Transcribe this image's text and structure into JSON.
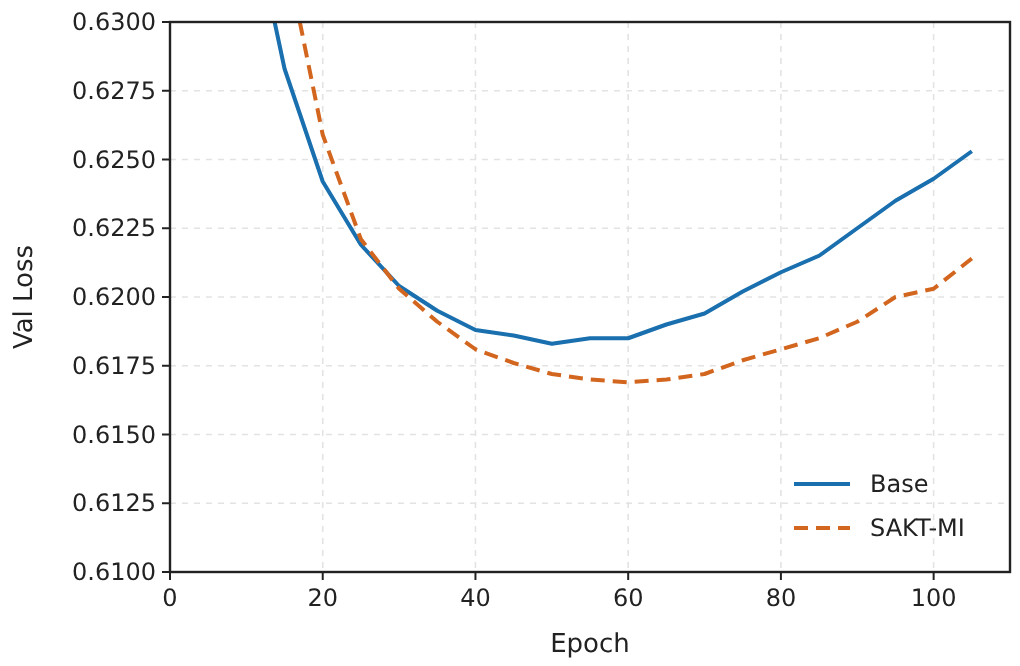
{
  "chart_data": {
    "type": "line",
    "xlabel": "Epoch",
    "ylabel": "Val Loss",
    "xlim": [
      0,
      110
    ],
    "xticks": [
      0,
      20,
      40,
      60,
      80,
      100
    ],
    "ylim": [
      0.61,
      0.63
    ],
    "yticks": [
      {
        "value": 0.61,
        "label": "0.6100"
      },
      {
        "value": 0.6125,
        "label": "0.6125"
      },
      {
        "value": 0.615,
        "label": "0.6150"
      },
      {
        "value": 0.6175,
        "label": "0.6175"
      },
      {
        "value": 0.62,
        "label": "0.6200"
      },
      {
        "value": 0.6225,
        "label": "0.6225"
      },
      {
        "value": 0.625,
        "label": "0.6250"
      },
      {
        "value": 0.6275,
        "label": "0.6275"
      },
      {
        "value": 0.63,
        "label": "0.6300"
      }
    ],
    "grid": true,
    "legend": "bottom right",
    "series": [
      {
        "name": "Base",
        "color": "#1a6fae",
        "line_style": "solid",
        "x": [
          13.7,
          15,
          20,
          25,
          30,
          35,
          40,
          45,
          50,
          55,
          60,
          65,
          70,
          75,
          80,
          85,
          90,
          95,
          100,
          105
        ],
        "values": [
          0.63,
          0.6283,
          0.6242,
          0.6219,
          0.6204,
          0.6195,
          0.6188,
          0.6186,
          0.6183,
          0.6185,
          0.6185,
          0.619,
          0.6194,
          0.6202,
          0.6209,
          0.6215,
          0.6225,
          0.6235,
          0.6243,
          0.6253
        ]
      },
      {
        "name": "SAKT-MI",
        "color": "#d3661f",
        "line_style": "dashed",
        "x": [
          17,
          20,
          25,
          30,
          35,
          40,
          45,
          50,
          55,
          60,
          65,
          70,
          75,
          80,
          85,
          90,
          95,
          100,
          105
        ],
        "values": [
          0.63,
          0.6259,
          0.6221,
          0.6203,
          0.6191,
          0.6181,
          0.6176,
          0.6172,
          0.617,
          0.6169,
          0.617,
          0.6172,
          0.6177,
          0.6181,
          0.6185,
          0.6191,
          0.62,
          0.6203,
          0.6214
        ]
      }
    ]
  }
}
